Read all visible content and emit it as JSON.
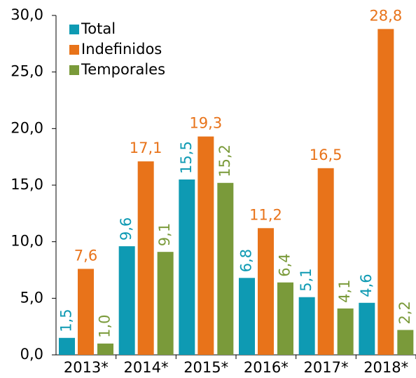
{
  "chart_data": {
    "type": "bar",
    "categories": [
      "2013*",
      "2014*",
      "2015*",
      "2016*",
      "2017*",
      "2018*"
    ],
    "series": [
      {
        "name": "Total",
        "color": "#0e9ab3",
        "values": [
          1.5,
          9.6,
          15.5,
          6.8,
          5.1,
          4.6
        ],
        "value_labels": [
          "1,5",
          "9,6",
          "15,5",
          "6,8",
          "5,1",
          "4,6"
        ]
      },
      {
        "name": "Indefinidos",
        "color": "#e8731a",
        "values": [
          7.6,
          17.1,
          19.3,
          11.2,
          16.5,
          28.8
        ],
        "value_labels": [
          "7,6",
          "17,1",
          "19,3",
          "11,2",
          "16,5",
          "28,8"
        ]
      },
      {
        "name": "Temporales",
        "color": "#7a9a3a",
        "values": [
          1.0,
          9.1,
          15.2,
          6.4,
          4.1,
          2.2
        ],
        "value_labels": [
          "1,0",
          "9,1",
          "15,2",
          "6,4",
          "4,1",
          "2,2"
        ]
      }
    ],
    "ylim": [
      0,
      30
    ],
    "yticks": [
      {
        "value": 0,
        "label": "0,0"
      },
      {
        "value": 5,
        "label": "5,0"
      },
      {
        "value": 10,
        "label": "10,0"
      },
      {
        "value": 15,
        "label": "15,0"
      },
      {
        "value": 20,
        "label": "20,0"
      },
      {
        "value": 25,
        "label": "25,0"
      },
      {
        "value": 30,
        "label": "30,0"
      }
    ],
    "grid": false,
    "legend": "upper-left"
  }
}
